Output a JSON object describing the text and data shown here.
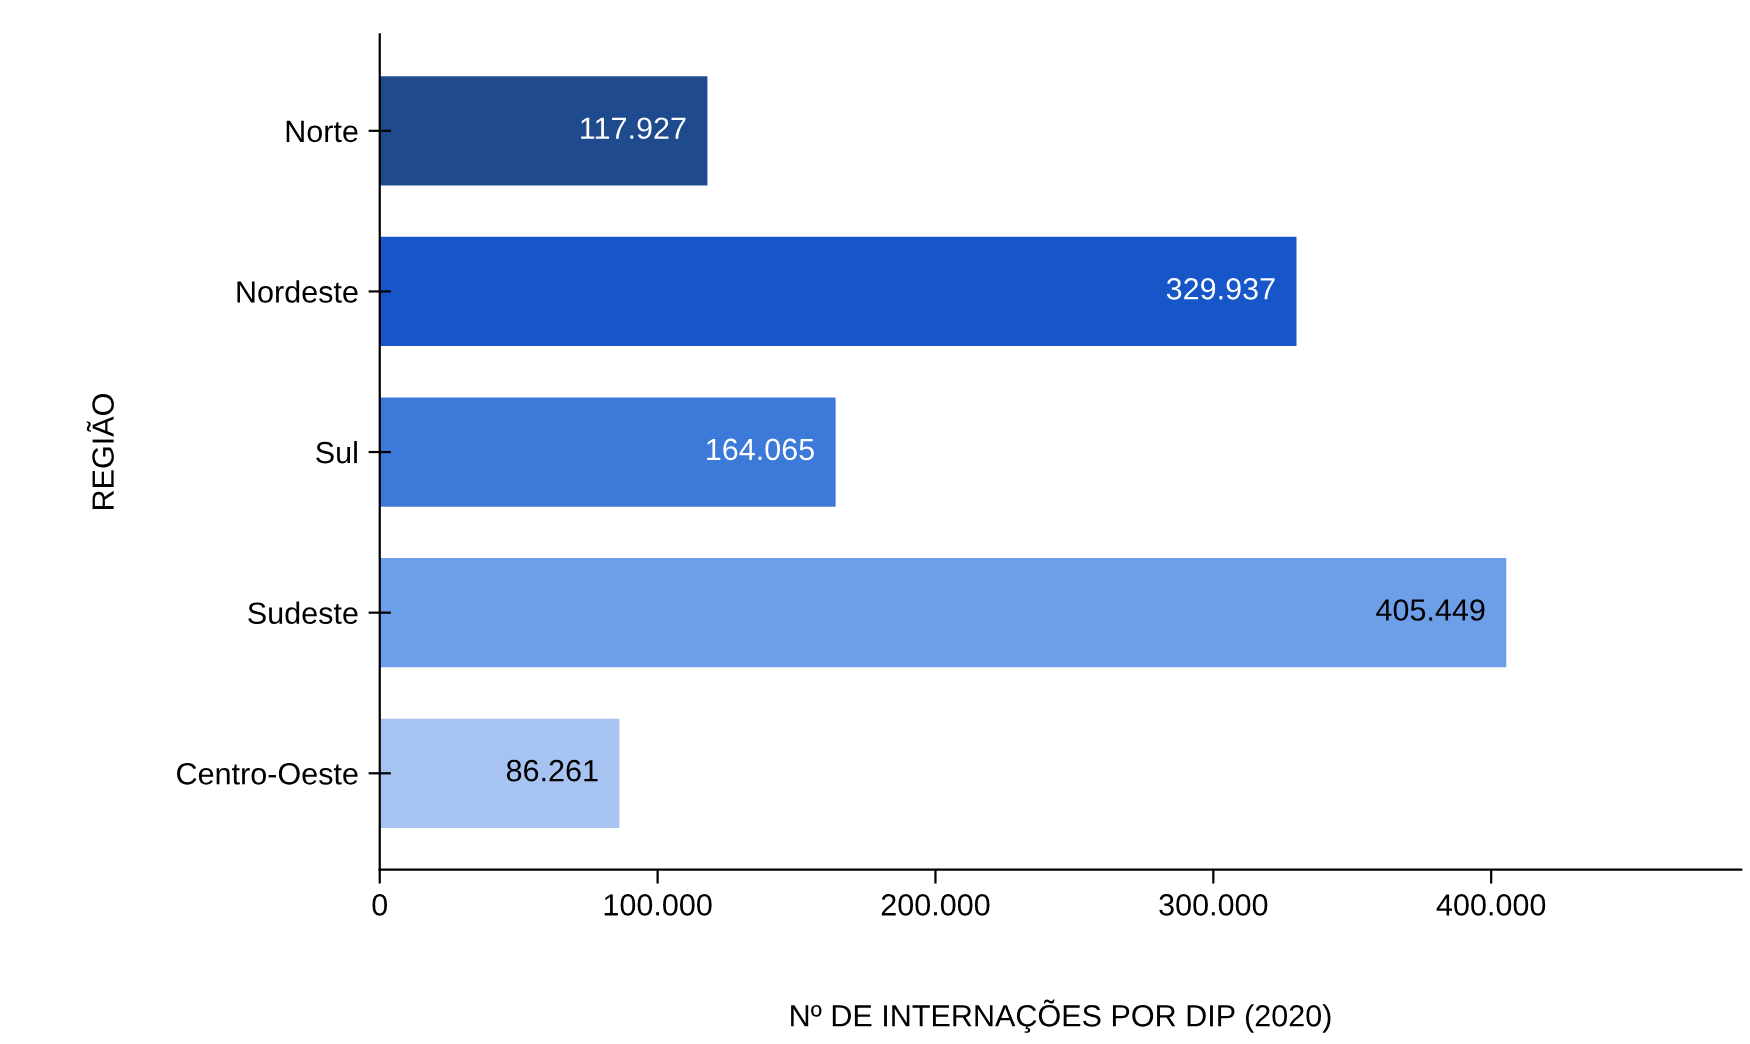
{
  "chart_data": {
    "type": "bar",
    "orientation": "horizontal",
    "categories": [
      "Norte",
      "Nordeste",
      "Sul",
      "Sudeste",
      "Centro-Oeste"
    ],
    "values": [
      117927,
      329937,
      164065,
      405449,
      86261
    ],
    "colors": [
      "#1f4b8e",
      "#1656c8",
      "#3c79d8",
      "#6d9fe9",
      "#a7c3f1"
    ],
    "value_labels": [
      "117.927",
      "329.937",
      "164.065",
      "405.449",
      "86.261"
    ],
    "xlabel": "Nº DE INTERNAÇÕES POR DIP (2020)",
    "ylabel": "REGIÃO",
    "xlim": [
      0,
      490000
    ],
    "xticks": [
      0,
      {
        "value": 100000,
        "label": "100.000"
      },
      {
        "value": 200000,
        "label": "200.000"
      },
      {
        "value": 300000,
        "label": "300.000"
      },
      {
        "value": 400000,
        "label": "400.000"
      }
    ],
    "grid": false,
    "legend": false
  }
}
